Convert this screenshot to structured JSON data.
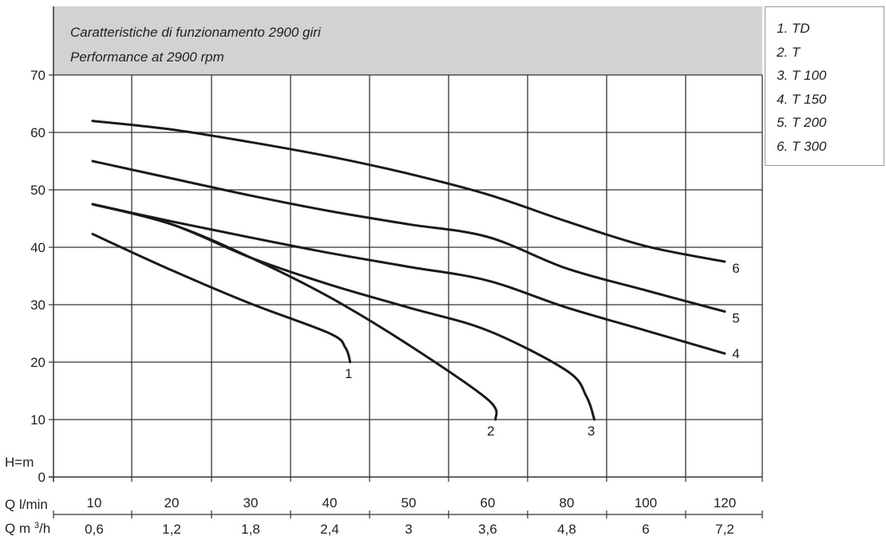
{
  "chart_data": {
    "type": "line",
    "title": "Caratteristiche di funzionamento 2900 giri",
    "subtitle": "Performance at 2900 rpm",
    "ylabel": "H=m",
    "xlabel": "Q l/min",
    "xlabel2": "Q m3/h",
    "ylim": [
      0,
      70
    ],
    "yticks": [
      "0",
      "10",
      "20",
      "30",
      "40",
      "50",
      "60",
      "70"
    ],
    "xticks": [
      "10",
      "20",
      "30",
      "40",
      "50",
      "60",
      "80",
      "100",
      "120"
    ],
    "xticks2": [
      "0,6",
      "1,2",
      "1,8",
      "2,4",
      "3",
      "3,6",
      "4,8",
      "6",
      "7,2"
    ],
    "grid": true,
    "legend_position": "top-right",
    "series": [
      {
        "name": "1. TD",
        "label": "1",
        "x": [
          10,
          20,
          30,
          40,
          42,
          42.6
        ],
        "y": [
          42.3,
          36,
          30.2,
          25,
          22.5,
          20
        ]
      },
      {
        "name": "2. T",
        "label": "2",
        "x": [
          10,
          20,
          30,
          40,
          50,
          60,
          62
        ],
        "y": [
          47.5,
          44,
          38.2,
          31.3,
          23,
          13.5,
          10
        ]
      },
      {
        "name": "3. T 100",
        "label": "3",
        "x": [
          10,
          20,
          30,
          40,
          50,
          60,
          80,
          85,
          87
        ],
        "y": [
          47.5,
          44,
          38.2,
          33.5,
          29.5,
          25.5,
          18.5,
          14,
          10
        ]
      },
      {
        "name": "4. T 150",
        "label": "4",
        "x": [
          10,
          20,
          30,
          40,
          50,
          60,
          80,
          100,
          120
        ],
        "y": [
          47.5,
          44.5,
          41.7,
          39,
          36.6,
          34.2,
          29.5,
          25.5,
          21.5
        ]
      },
      {
        "name": "5. T 200",
        "label": "5",
        "x": [
          10,
          20,
          30,
          40,
          50,
          60,
          80,
          100,
          120
        ],
        "y": [
          55,
          52,
          49,
          46.3,
          44,
          41.8,
          36.3,
          32.5,
          28.8
        ]
      },
      {
        "name": "6. T 300",
        "label": "6",
        "x": [
          10,
          20,
          30,
          40,
          50,
          60,
          80,
          100,
          120
        ],
        "y": [
          62,
          60.5,
          58.3,
          55.8,
          52.8,
          49.2,
          44.5,
          40.2,
          37.5
        ]
      }
    ]
  }
}
